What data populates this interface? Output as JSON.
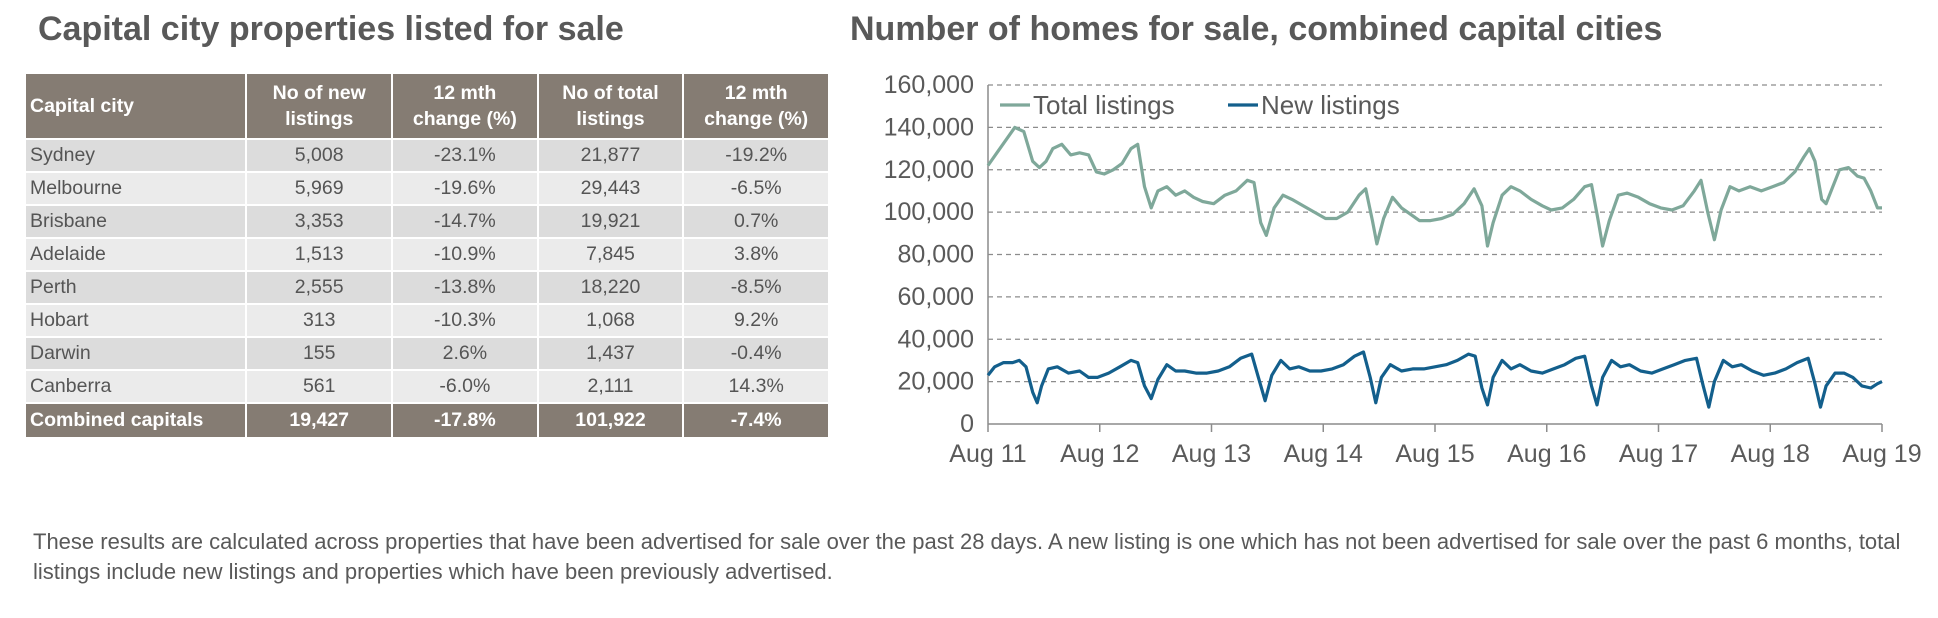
{
  "table": {
    "title": "Capital city properties listed for sale",
    "headers": [
      "Capital city",
      "No of new listings",
      "12 mth change (%)",
      "No of total listings",
      "12 mth change (%)"
    ],
    "rows": [
      [
        "Sydney",
        "5,008",
        "-23.1%",
        "21,877",
        "-19.2%"
      ],
      [
        "Melbourne",
        "5,969",
        "-19.6%",
        "29,443",
        "-6.5%"
      ],
      [
        "Brisbane",
        "3,353",
        "-14.7%",
        "19,921",
        "0.7%"
      ],
      [
        "Adelaide",
        "1,513",
        "-10.9%",
        "7,845",
        "3.8%"
      ],
      [
        "Perth",
        "2,555",
        "-13.8%",
        "18,220",
        "-8.5%"
      ],
      [
        "Hobart",
        "313",
        "-10.3%",
        "1,068",
        "9.2%"
      ],
      [
        "Darwin",
        "155",
        "2.6%",
        "1,437",
        "-0.4%"
      ],
      [
        "Canberra",
        "561",
        "-6.0%",
        "2,111",
        "14.3%"
      ]
    ],
    "total_row": [
      "Combined capitals",
      "19,427",
      "-17.8%",
      "101,922",
      "-7.4%"
    ]
  },
  "chart_data": {
    "type": "line",
    "title": "Number of homes for sale, combined capital cities",
    "xlabel": "",
    "ylabel": "",
    "ylim": [
      0,
      160000
    ],
    "yticks": [
      "0",
      "20,000",
      "40,000",
      "60,000",
      "80,000",
      "100,000",
      "120,000",
      "140,000",
      "160,000"
    ],
    "ytick_values": [
      0,
      20000,
      40000,
      60000,
      80000,
      100000,
      120000,
      140000,
      160000
    ],
    "xticks": [
      "Aug 11",
      "Aug 12",
      "Aug 13",
      "Aug 14",
      "Aug 15",
      "Aug 16",
      "Aug 17",
      "Aug 18",
      "Aug 19"
    ],
    "xlim": [
      2011.58,
      2019.58
    ],
    "grid": "horizontal dashed",
    "legend_position": "top-left",
    "series": [
      {
        "name": "Total listings",
        "color": "#7fa89a",
        "points": [
          [
            2011.58,
            122000
          ],
          [
            2011.66,
            128000
          ],
          [
            2011.74,
            134000
          ],
          [
            2011.82,
            140000
          ],
          [
            2011.9,
            138000
          ],
          [
            2011.98,
            124000
          ],
          [
            2012.04,
            121000
          ],
          [
            2012.1,
            124000
          ],
          [
            2012.16,
            130000
          ],
          [
            2012.24,
            132000
          ],
          [
            2012.32,
            127000
          ],
          [
            2012.4,
            128000
          ],
          [
            2012.48,
            127000
          ],
          [
            2012.55,
            119000
          ],
          [
            2012.62,
            118000
          ],
          [
            2012.7,
            120000
          ],
          [
            2012.78,
            123000
          ],
          [
            2012.86,
            130000
          ],
          [
            2012.92,
            132000
          ],
          [
            2012.98,
            112000
          ],
          [
            2013.04,
            102000
          ],
          [
            2013.1,
            110000
          ],
          [
            2013.18,
            112000
          ],
          [
            2013.26,
            108000
          ],
          [
            2013.34,
            110000
          ],
          [
            2013.42,
            107000
          ],
          [
            2013.5,
            105000
          ],
          [
            2013.6,
            104000
          ],
          [
            2013.7,
            108000
          ],
          [
            2013.8,
            110000
          ],
          [
            2013.9,
            115000
          ],
          [
            2013.96,
            114000
          ],
          [
            2014.02,
            95000
          ],
          [
            2014.07,
            89000
          ],
          [
            2014.14,
            102000
          ],
          [
            2014.22,
            108000
          ],
          [
            2014.3,
            106000
          ],
          [
            2014.4,
            103000
          ],
          [
            2014.5,
            100000
          ],
          [
            2014.6,
            97000
          ],
          [
            2014.7,
            97000
          ],
          [
            2014.8,
            100000
          ],
          [
            2014.9,
            108000
          ],
          [
            2014.96,
            111000
          ],
          [
            2015.02,
            96000
          ],
          [
            2015.06,
            85000
          ],
          [
            2015.12,
            97000
          ],
          [
            2015.2,
            107000
          ],
          [
            2015.28,
            102000
          ],
          [
            2015.36,
            99000
          ],
          [
            2015.44,
            96000
          ],
          [
            2015.54,
            96000
          ],
          [
            2015.64,
            97000
          ],
          [
            2015.74,
            99000
          ],
          [
            2015.84,
            104000
          ],
          [
            2015.93,
            111000
          ],
          [
            2016.0,
            103000
          ],
          [
            2016.05,
            84000
          ],
          [
            2016.1,
            95000
          ],
          [
            2016.18,
            108000
          ],
          [
            2016.26,
            112000
          ],
          [
            2016.34,
            110000
          ],
          [
            2016.44,
            106000
          ],
          [
            2016.54,
            103000
          ],
          [
            2016.62,
            101000
          ],
          [
            2016.72,
            102000
          ],
          [
            2016.82,
            106000
          ],
          [
            2016.92,
            112000
          ],
          [
            2016.98,
            113000
          ],
          [
            2017.04,
            96000
          ],
          [
            2017.08,
            84000
          ],
          [
            2017.14,
            96000
          ],
          [
            2017.22,
            108000
          ],
          [
            2017.3,
            109000
          ],
          [
            2017.4,
            107000
          ],
          [
            2017.5,
            104000
          ],
          [
            2017.6,
            102000
          ],
          [
            2017.7,
            101000
          ],
          [
            2017.8,
            103000
          ],
          [
            2017.9,
            110000
          ],
          [
            2017.96,
            115000
          ],
          [
            2018.02,
            100000
          ],
          [
            2018.08,
            87000
          ],
          [
            2018.14,
            101000
          ],
          [
            2018.22,
            112000
          ],
          [
            2018.3,
            110000
          ],
          [
            2018.4,
            112000
          ],
          [
            2018.5,
            110000
          ],
          [
            2018.6,
            112000
          ],
          [
            2018.7,
            114000
          ],
          [
            2018.8,
            119000
          ],
          [
            2018.88,
            126000
          ],
          [
            2018.93,
            130000
          ],
          [
            2018.98,
            124000
          ],
          [
            2019.04,
            106000
          ],
          [
            2019.08,
            104000
          ],
          [
            2019.14,
            112000
          ],
          [
            2019.2,
            120000
          ],
          [
            2019.28,
            121000
          ],
          [
            2019.36,
            117000
          ],
          [
            2019.42,
            116000
          ],
          [
            2019.48,
            110000
          ],
          [
            2019.54,
            102000
          ],
          [
            2019.58,
            102000
          ]
        ]
      },
      {
        "name": "New listings",
        "color": "#135f8c",
        "points": [
          [
            2011.58,
            23000
          ],
          [
            2011.64,
            27000
          ],
          [
            2011.72,
            29000
          ],
          [
            2011.8,
            29000
          ],
          [
            2011.86,
            30000
          ],
          [
            2011.92,
            27000
          ],
          [
            2011.98,
            15000
          ],
          [
            2012.02,
            10000
          ],
          [
            2012.06,
            18000
          ],
          [
            2012.12,
            26000
          ],
          [
            2012.2,
            27000
          ],
          [
            2012.3,
            24000
          ],
          [
            2012.4,
            25000
          ],
          [
            2012.48,
            22000
          ],
          [
            2012.56,
            22000
          ],
          [
            2012.66,
            24000
          ],
          [
            2012.76,
            27000
          ],
          [
            2012.86,
            30000
          ],
          [
            2012.92,
            29000
          ],
          [
            2012.98,
            18000
          ],
          [
            2013.04,
            12000
          ],
          [
            2013.1,
            21000
          ],
          [
            2013.18,
            28000
          ],
          [
            2013.26,
            25000
          ],
          [
            2013.34,
            25000
          ],
          [
            2013.44,
            24000
          ],
          [
            2013.54,
            24000
          ],
          [
            2013.64,
            25000
          ],
          [
            2013.74,
            27000
          ],
          [
            2013.84,
            31000
          ],
          [
            2013.94,
            33000
          ],
          [
            2014.0,
            22000
          ],
          [
            2014.06,
            11000
          ],
          [
            2014.12,
            23000
          ],
          [
            2014.2,
            30000
          ],
          [
            2014.28,
            26000
          ],
          [
            2014.36,
            27000
          ],
          [
            2014.46,
            25000
          ],
          [
            2014.56,
            25000
          ],
          [
            2014.66,
            26000
          ],
          [
            2014.76,
            28000
          ],
          [
            2014.86,
            32000
          ],
          [
            2014.94,
            34000
          ],
          [
            2015.0,
            22000
          ],
          [
            2015.05,
            10000
          ],
          [
            2015.1,
            22000
          ],
          [
            2015.18,
            28000
          ],
          [
            2015.28,
            25000
          ],
          [
            2015.38,
            26000
          ],
          [
            2015.48,
            26000
          ],
          [
            2015.58,
            27000
          ],
          [
            2015.68,
            28000
          ],
          [
            2015.78,
            30000
          ],
          [
            2015.88,
            33000
          ],
          [
            2015.94,
            32000
          ],
          [
            2016.0,
            17000
          ],
          [
            2016.05,
            9000
          ],
          [
            2016.1,
            22000
          ],
          [
            2016.18,
            30000
          ],
          [
            2016.26,
            26000
          ],
          [
            2016.34,
            28000
          ],
          [
            2016.44,
            25000
          ],
          [
            2016.54,
            24000
          ],
          [
            2016.64,
            26000
          ],
          [
            2016.74,
            28000
          ],
          [
            2016.84,
            31000
          ],
          [
            2016.92,
            32000
          ],
          [
            2016.98,
            18000
          ],
          [
            2017.03,
            9000
          ],
          [
            2017.08,
            22000
          ],
          [
            2017.16,
            30000
          ],
          [
            2017.24,
            27000
          ],
          [
            2017.32,
            28000
          ],
          [
            2017.42,
            25000
          ],
          [
            2017.52,
            24000
          ],
          [
            2017.62,
            26000
          ],
          [
            2017.72,
            28000
          ],
          [
            2017.82,
            30000
          ],
          [
            2017.92,
            31000
          ],
          [
            2017.98,
            18000
          ],
          [
            2018.03,
            8000
          ],
          [
            2018.08,
            20000
          ],
          [
            2018.16,
            30000
          ],
          [
            2018.24,
            27000
          ],
          [
            2018.32,
            28000
          ],
          [
            2018.42,
            25000
          ],
          [
            2018.52,
            23000
          ],
          [
            2018.62,
            24000
          ],
          [
            2018.72,
            26000
          ],
          [
            2018.82,
            29000
          ],
          [
            2018.92,
            31000
          ],
          [
            2018.98,
            19000
          ],
          [
            2019.03,
            8000
          ],
          [
            2019.08,
            18000
          ],
          [
            2019.16,
            24000
          ],
          [
            2019.24,
            24000
          ],
          [
            2019.32,
            22000
          ],
          [
            2019.4,
            18000
          ],
          [
            2019.48,
            17000
          ],
          [
            2019.54,
            19000
          ],
          [
            2019.58,
            20000
          ]
        ]
      }
    ]
  },
  "footnote": "These results are calculated across properties that have been advertised for sale over the past 28 days.  A new listing is one which has not been advertised for sale over the past 6 months, total listings include new listings and properties which have been previously advertised."
}
